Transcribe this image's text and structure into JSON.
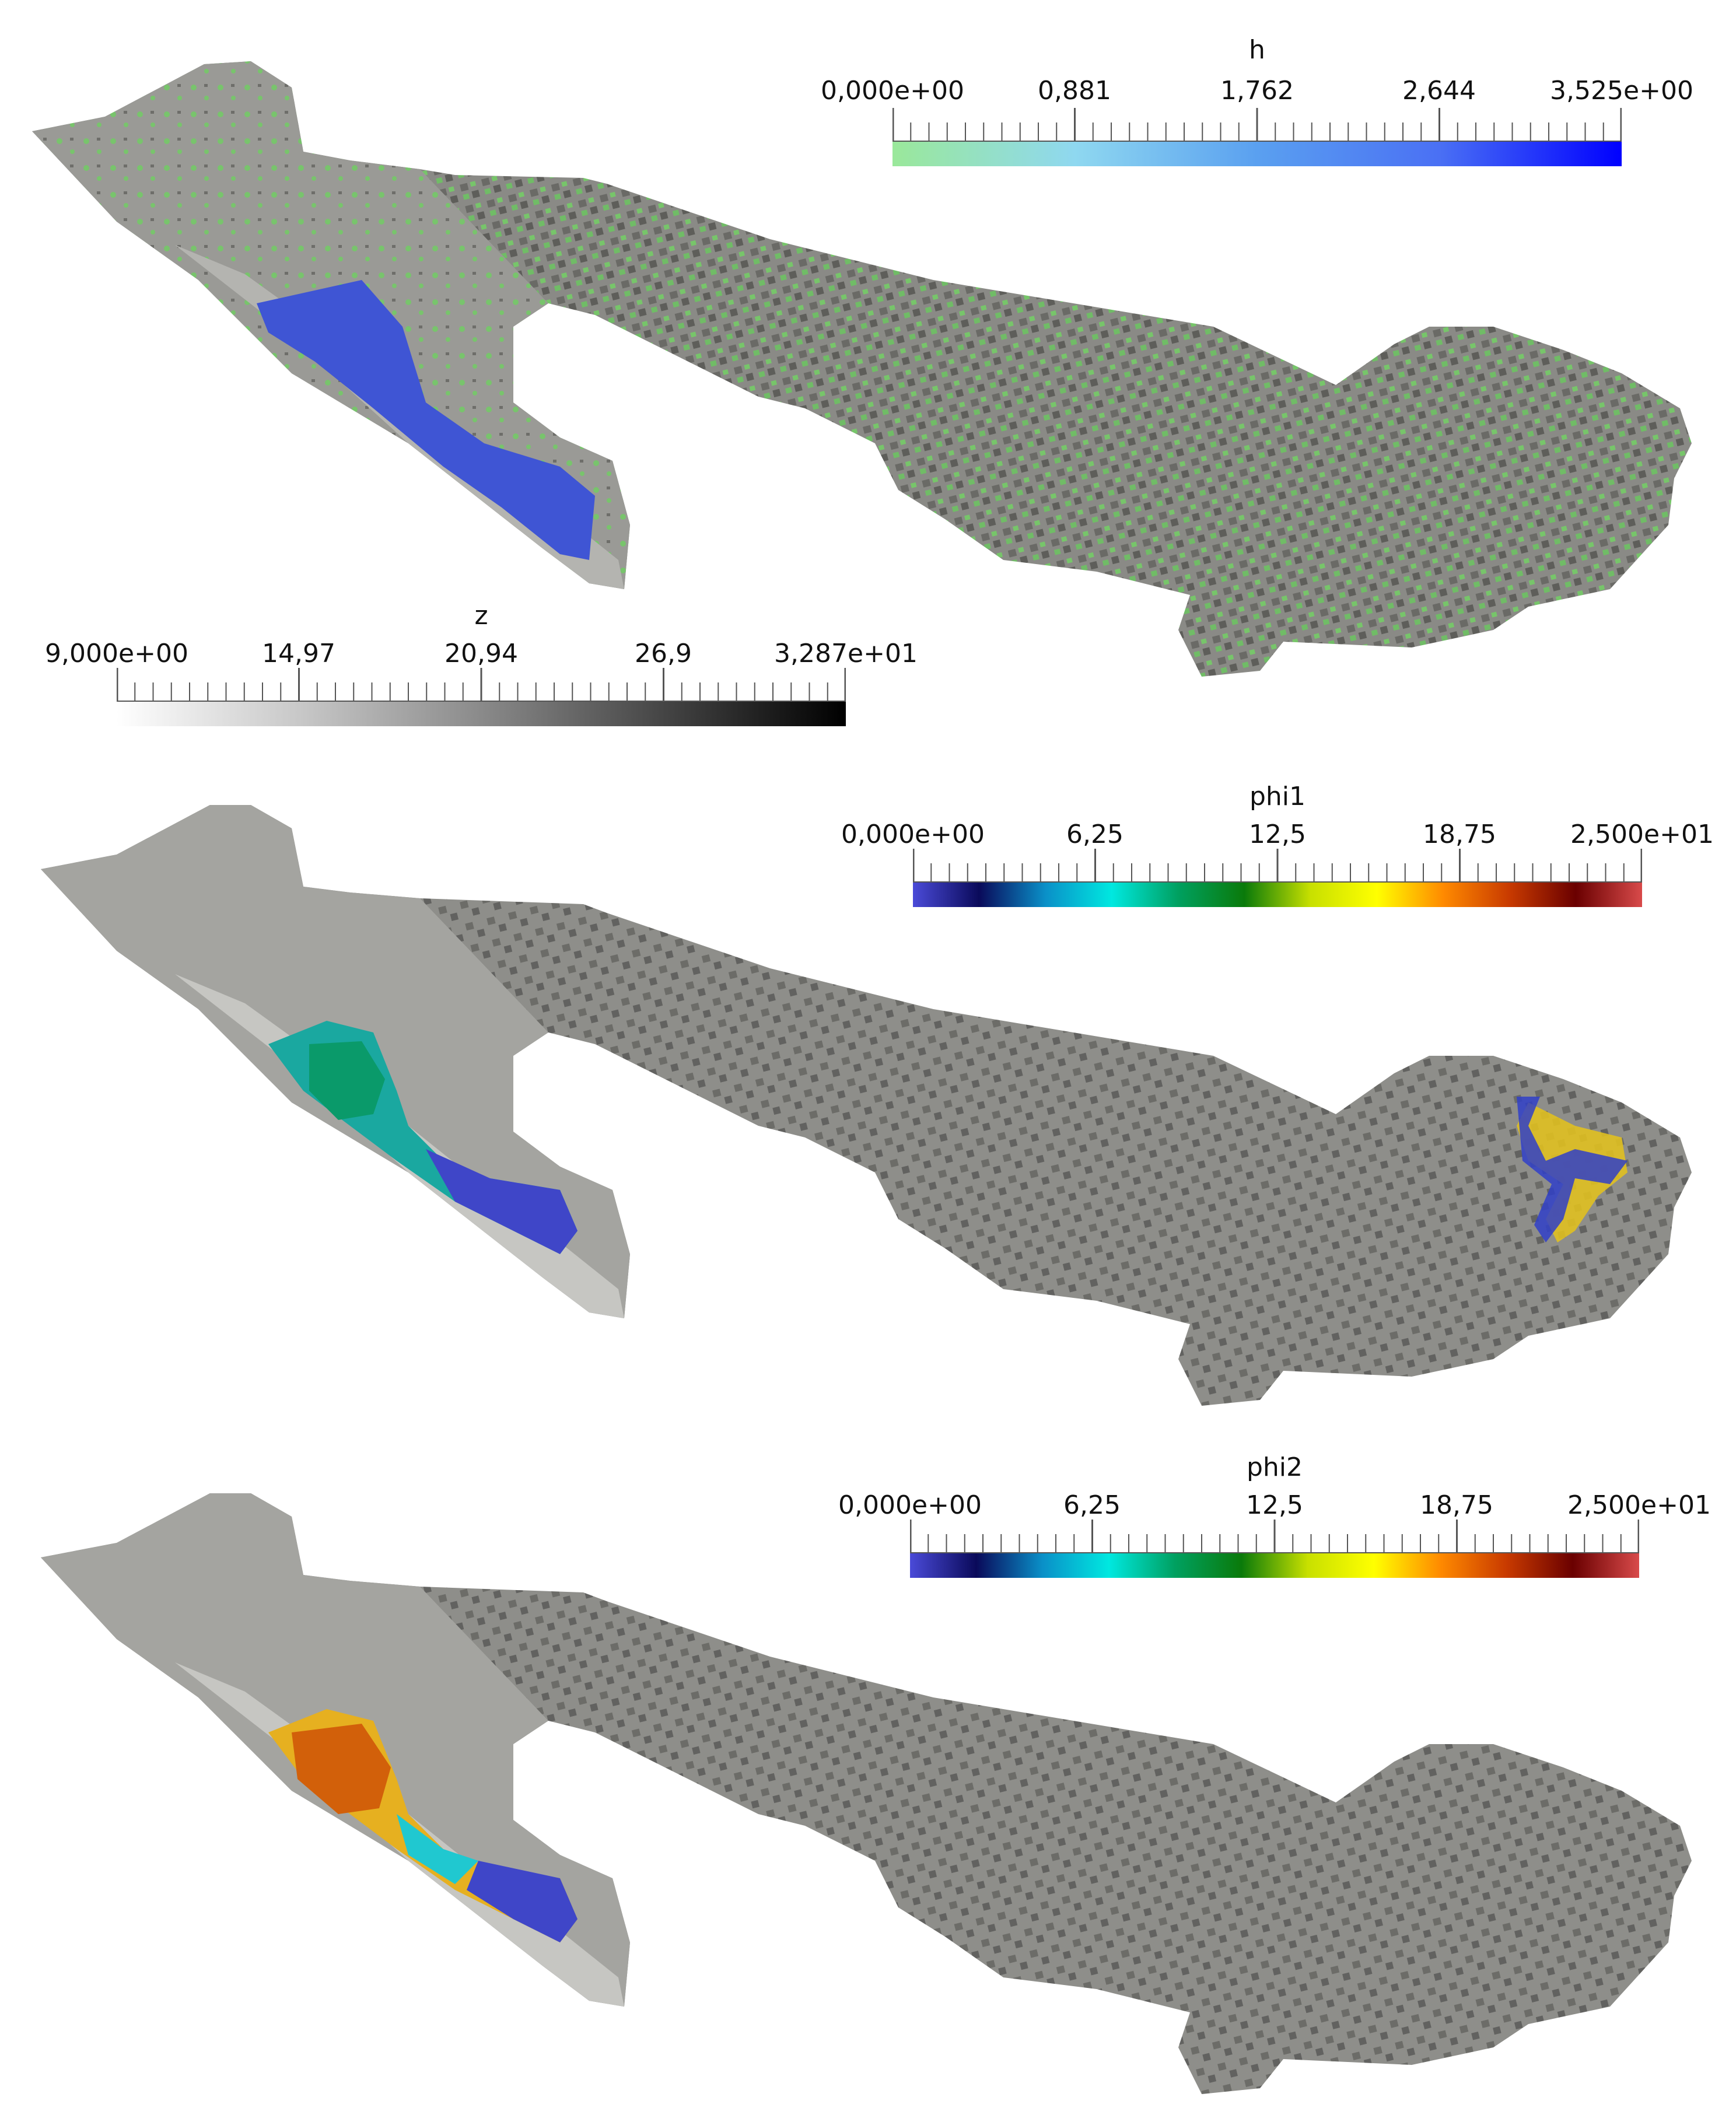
{
  "panels": [
    {
      "id": "depth",
      "legends": [
        {
          "variable": "h",
          "ticks": [
            "0,000e+00",
            "0,881",
            "1,762",
            "2,644",
            "3,525e+00"
          ],
          "colors": [
            "#9ae89a",
            "#8fd8f0",
            "#5aa0f0",
            "#4a70f4",
            "#0000ff"
          ]
        },
        {
          "variable": "z",
          "ticks": [
            "9,000e+00",
            "14,97",
            "20,94",
            "26,9",
            "3,287e+01"
          ],
          "colors": [
            "#ffffff",
            "#c8c8c8",
            "#8a8a8a",
            "#454545",
            "#000000"
          ]
        }
      ],
      "overlay": "water-depth"
    },
    {
      "id": "phi1",
      "legends": [
        {
          "variable": "phi1",
          "ticks": [
            "0,000e+00",
            "6,25",
            "12,5",
            "18,75",
            "2,500e+01"
          ],
          "colors": [
            "#4a4ad8",
            "#0a0a5a",
            "#0a90c8",
            "#00e8e0",
            "#00a060",
            "#0a7a0a",
            "#c8e000",
            "#ffff00",
            "#ff8a00",
            "#c83a00",
            "#6a0000",
            "#d84a4a"
          ]
        }
      ],
      "overlay": "tracer-phi1"
    },
    {
      "id": "phi2",
      "legends": [
        {
          "variable": "phi2",
          "ticks": [
            "0,000e+00",
            "6,25",
            "12,5",
            "18,75",
            "2,500e+01"
          ],
          "colors": [
            "#4a4ad8",
            "#0a0a5a",
            "#0a90c8",
            "#00e8e0",
            "#00a060",
            "#0a7a0a",
            "#c8e000",
            "#ffff00",
            "#ff8a00",
            "#c83a00",
            "#6a0000",
            "#d84a4a"
          ]
        }
      ],
      "overlay": "tracer-phi2"
    }
  ]
}
